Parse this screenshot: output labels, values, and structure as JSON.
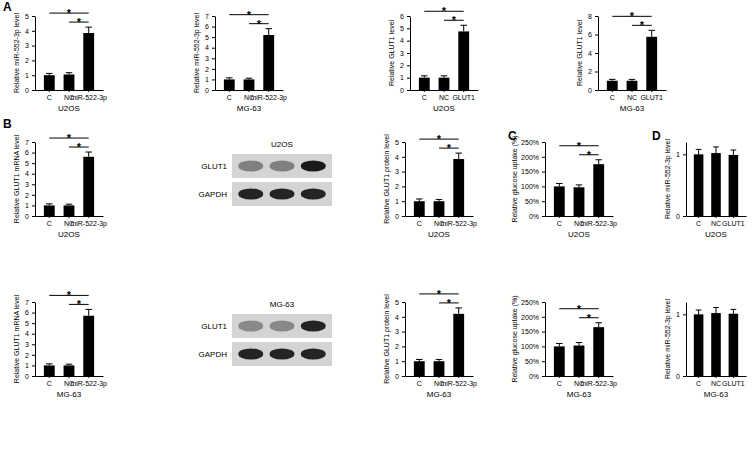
{
  "panel_labels": [
    "A",
    "B",
    "C",
    "D"
  ],
  "chart_data": [
    {
      "type": "bar",
      "ylabel": "Relative miR-552-3p level",
      "xlabel": "U2OS",
      "categories": [
        "C",
        "NC",
        "miR-522-3p"
      ],
      "values": [
        1.0,
        1.05,
        3.85
      ],
      "error": [
        0.12,
        0.12,
        0.4
      ],
      "color": "#000000",
      "ylim": [
        0,
        5
      ],
      "yticks": [
        0,
        1,
        2,
        3,
        4,
        5
      ],
      "significance": [
        {
          "from": "C",
          "to": "miR-522-3p",
          "label": "*"
        },
        {
          "from": "NC",
          "to": "miR-522-3p",
          "label": "*"
        }
      ]
    },
    {
      "type": "bar",
      "ylabel": "Relative miR-552-3p level",
      "xlabel": "MG-63",
      "categories": [
        "C",
        "NC",
        "miR-522-3p"
      ],
      "values": [
        1.0,
        1.0,
        5.2
      ],
      "error": [
        0.15,
        0.12,
        0.6
      ],
      "color": "#000000",
      "ylim": [
        0,
        7
      ],
      "yticks": [
        0,
        1,
        2,
        3,
        4,
        5,
        6,
        7
      ],
      "significance": [
        {
          "from": "C",
          "to": "miR-522-3p",
          "label": "*"
        },
        {
          "from": "NC",
          "to": "miR-522-3p",
          "label": "*"
        }
      ]
    },
    {
      "type": "bar",
      "ylabel": "Relative GLUT1 level",
      "xlabel": "U2OS",
      "categories": [
        "C",
        "NC",
        "GLUT1"
      ],
      "values": [
        1.0,
        1.0,
        4.75
      ],
      "error": [
        0.15,
        0.15,
        0.5
      ],
      "color": "#000000",
      "ylim": [
        0,
        6
      ],
      "yticks": [
        0,
        1,
        2,
        3,
        4,
        5,
        6
      ],
      "significance": [
        {
          "from": "C",
          "to": "GLUT1",
          "label": "*"
        },
        {
          "from": "NC",
          "to": "GLUT1",
          "label": "*"
        }
      ]
    },
    {
      "type": "bar",
      "ylabel": "Relative GLUT1 level",
      "xlabel": "MG-63",
      "categories": [
        "C",
        "NC",
        "GLUT1"
      ],
      "values": [
        1.0,
        1.0,
        5.75
      ],
      "error": [
        0.15,
        0.15,
        0.7
      ],
      "color": "#000000",
      "ylim": [
        0,
        8
      ],
      "yticks": [
        0,
        2,
        4,
        6,
        8
      ],
      "significance": [
        {
          "from": "C",
          "to": "GLUT1",
          "label": "*"
        },
        {
          "from": "NC",
          "to": "GLUT1",
          "label": "*"
        }
      ]
    },
    {
      "type": "bar",
      "ylabel": "Relative GLUT1 mRNA level",
      "xlabel": "U2OS",
      "categories": [
        "C",
        "NC",
        "miR-522-3p"
      ],
      "values": [
        1.0,
        1.0,
        5.6
      ],
      "error": [
        0.15,
        0.12,
        0.45
      ],
      "color": "#000000",
      "ylim": [
        0,
        7
      ],
      "yticks": [
        0,
        1,
        2,
        3,
        4,
        5,
        6,
        7
      ],
      "significance": [
        {
          "from": "C",
          "to": "miR-522-3p",
          "label": "*"
        },
        {
          "from": "NC",
          "to": "miR-522-3p",
          "label": "*"
        }
      ]
    },
    {
      "type": "bar",
      "ylabel": "Relative GLUT1 protein level",
      "xlabel": "U2OS",
      "categories": [
        "C",
        "NC",
        "miR-522-3p"
      ],
      "values": [
        1.0,
        1.0,
        3.85
      ],
      "error": [
        0.15,
        0.12,
        0.4
      ],
      "color": "#000000",
      "ylim": [
        0,
        5
      ],
      "yticks": [
        0,
        1,
        2,
        3,
        4,
        5
      ],
      "significance": [
        {
          "from": "C",
          "to": "miR-522-3p",
          "label": "*"
        },
        {
          "from": "NC",
          "to": "miR-522-3p",
          "label": "*"
        }
      ]
    },
    {
      "type": "bar",
      "ylabel": "Relative glucose uptake (%)",
      "xlabel": "U2OS",
      "categories": [
        "C",
        "NC",
        "miR-522-3p"
      ],
      "values": [
        100,
        97,
        175
      ],
      "error": [
        10,
        8,
        15
      ],
      "color": "#000000",
      "ylim": [
        0,
        250
      ],
      "yticks": [
        {
          "value": 0,
          "label": "0%"
        },
        {
          "value": 50,
          "label": "50%"
        },
        {
          "value": 100,
          "label": "100%"
        },
        {
          "value": 150,
          "label": "150%"
        },
        {
          "value": 200,
          "label": "200%"
        },
        {
          "value": 250,
          "label": "250%"
        }
      ],
      "significance": [
        {
          "from": "C",
          "to": "miR-522-3p",
          "label": "*"
        },
        {
          "from": "NC",
          "to": "miR-522-3p",
          "label": "*"
        }
      ]
    },
    {
      "type": "bar",
      "ylabel": "Relative miR-552-3p level",
      "xlabel": "U2OS",
      "categories": [
        "C",
        "NC",
        "GLUT1"
      ],
      "values": [
        1.0,
        1.02,
        0.99
      ],
      "error": [
        0.08,
        0.1,
        0.08
      ],
      "color": "#000000",
      "ylim": [
        0,
        1.2
      ],
      "yticks": [
        0,
        1
      ],
      "significance": []
    },
    {
      "type": "bar",
      "ylabel": "Relative GLUT1 mRNA level",
      "xlabel": "MG-63",
      "categories": [
        "C",
        "NC",
        "miR-522-3p"
      ],
      "values": [
        1.0,
        1.0,
        5.7
      ],
      "error": [
        0.15,
        0.12,
        0.6
      ],
      "color": "#000000",
      "ylim": [
        0,
        7
      ],
      "yticks": [
        0,
        1,
        2,
        3,
        4,
        5,
        6,
        7
      ],
      "significance": [
        {
          "from": "C",
          "to": "miR-522-3p",
          "label": "*"
        },
        {
          "from": "NC",
          "to": "miR-522-3p",
          "label": "*"
        }
      ]
    },
    {
      "type": "bar",
      "ylabel": "Relative GLUT1 protein level",
      "xlabel": "MG-63",
      "categories": [
        "C",
        "NC",
        "miR-522-3p"
      ],
      "values": [
        1.0,
        1.0,
        4.2
      ],
      "error": [
        0.12,
        0.12,
        0.4
      ],
      "color": "#000000",
      "ylim": [
        0,
        5
      ],
      "yticks": [
        0,
        1,
        2,
        3,
        4,
        5
      ],
      "significance": [
        {
          "from": "C",
          "to": "miR-522-3p",
          "label": "*"
        },
        {
          "from": "NC",
          "to": "miR-522-3p",
          "label": "*"
        }
      ]
    },
    {
      "type": "bar",
      "ylabel": "Relative glucose uptake (%)",
      "xlabel": "MG-63",
      "categories": [
        "C",
        "NC",
        "miR-522-3p"
      ],
      "values": [
        100,
        103,
        165
      ],
      "error": [
        10,
        10,
        15
      ],
      "color": "#000000",
      "ylim": [
        0,
        250
      ],
      "yticks": [
        {
          "value": 0,
          "label": "0%"
        },
        {
          "value": 50,
          "label": "50%"
        },
        {
          "value": 100,
          "label": "100%"
        },
        {
          "value": 150,
          "label": "150%"
        },
        {
          "value": 200,
          "label": "200%"
        },
        {
          "value": 250,
          "label": "250%"
        }
      ],
      "significance": [
        {
          "from": "C",
          "to": "miR-522-3p",
          "label": "*"
        },
        {
          "from": "NC",
          "to": "miR-522-3p",
          "label": "*"
        }
      ]
    },
    {
      "type": "bar",
      "ylabel": "Relative miR-552-3p level",
      "xlabel": "MG-63",
      "categories": [
        "C",
        "NC",
        "GLUT1"
      ],
      "values": [
        1.0,
        1.02,
        1.01
      ],
      "error": [
        0.07,
        0.09,
        0.07
      ],
      "color": "#000000",
      "ylim": [
        0,
        1.2
      ],
      "yticks": [
        0,
        1
      ],
      "significance": []
    }
  ],
  "blots": [
    {
      "title": "U2OS",
      "rows": [
        {
          "label": "GLUT1",
          "intensity": [
            0.45,
            0.45,
            1.0
          ]
        },
        {
          "label": "GAPDH",
          "intensity": [
            0.95,
            0.95,
            0.95
          ]
        }
      ]
    },
    {
      "title": "MG-63",
      "rows": [
        {
          "label": "GLUT1",
          "intensity": [
            0.4,
            0.4,
            0.95
          ]
        },
        {
          "label": "GAPDH",
          "intensity": [
            0.95,
            0.95,
            0.95
          ]
        }
      ]
    }
  ]
}
